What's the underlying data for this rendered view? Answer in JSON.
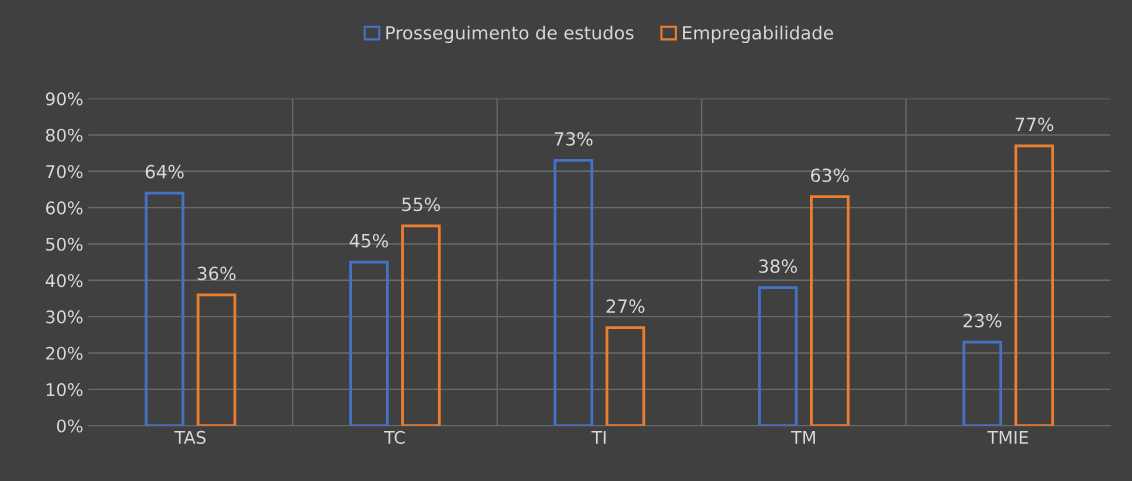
{
  "chart_data": {
    "type": "bar",
    "categories": [
      "TAS",
      "TC",
      "TI",
      "TM",
      "TMIE"
    ],
    "series": [
      {
        "name": "Prosseguimento de estudos",
        "color": "#4472c4",
        "values": [
          64,
          45,
          73,
          38,
          23
        ],
        "value_labels": [
          "64%",
          "45%",
          "73%",
          "38%",
          "23%"
        ]
      },
      {
        "name": "Empregabilidade",
        "color": "#ed7d31",
        "values": [
          36,
          55,
          27,
          63,
          77
        ],
        "value_labels": [
          "36%",
          "55%",
          "27%",
          "63%",
          "77%"
        ]
      }
    ],
    "ylim": [
      0,
      90
    ],
    "yticks": [
      {
        "value": 0,
        "label": "0%"
      },
      {
        "value": 10,
        "label": "10%"
      },
      {
        "value": 20,
        "label": "20%"
      },
      {
        "value": 30,
        "label": "30%"
      },
      {
        "value": 40,
        "label": "40%"
      },
      {
        "value": 50,
        "label": "50%"
      },
      {
        "value": 60,
        "label": "60%"
      },
      {
        "value": 70,
        "label": "70%"
      },
      {
        "value": 80,
        "label": "80%"
      },
      {
        "value": 90,
        "label": "90%"
      }
    ],
    "grid": true,
    "legend": "top"
  }
}
